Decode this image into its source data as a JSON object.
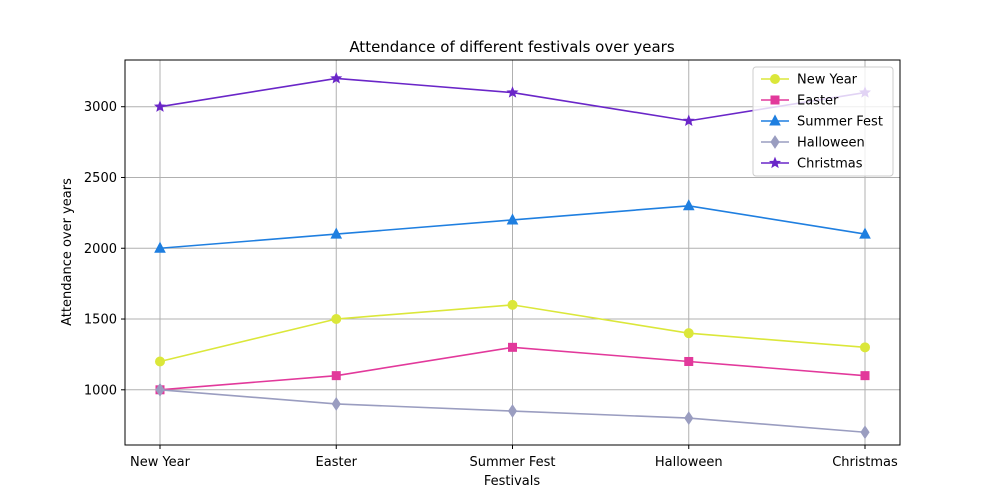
{
  "chart_data": {
    "type": "line",
    "title": "Attendance of different festivals over years",
    "xlabel": "Festivals",
    "ylabel": "Attendance over years",
    "categories": [
      "New Year",
      "Easter",
      "Summer Fest",
      "Halloween",
      "Christmas"
    ],
    "ylim": [
      610,
      3330
    ],
    "yticks": [
      1000,
      1500,
      2000,
      2500,
      3000
    ],
    "grid": true,
    "legend_position": "top-right",
    "series": [
      {
        "name": "New Year",
        "values": [
          1200,
          1500,
          1600,
          1400,
          1300
        ],
        "color": "#dbe73a",
        "marker": "circle"
      },
      {
        "name": "Easter",
        "values": [
          1000,
          1100,
          1300,
          1200,
          1100
        ],
        "color": "#e2399b",
        "marker": "square"
      },
      {
        "name": "Summer Fest",
        "values": [
          2000,
          2100,
          2200,
          2300,
          2100
        ],
        "color": "#1f7fe0",
        "marker": "triangle"
      },
      {
        "name": "Halloween",
        "values": [
          1000,
          900,
          850,
          800,
          700
        ],
        "color": "#9a9dc0",
        "marker": "diamond"
      },
      {
        "name": "Christmas",
        "values": [
          3000,
          3200,
          3100,
          2900,
          3100
        ],
        "color": "#6a26c8",
        "marker": "star"
      }
    ]
  }
}
